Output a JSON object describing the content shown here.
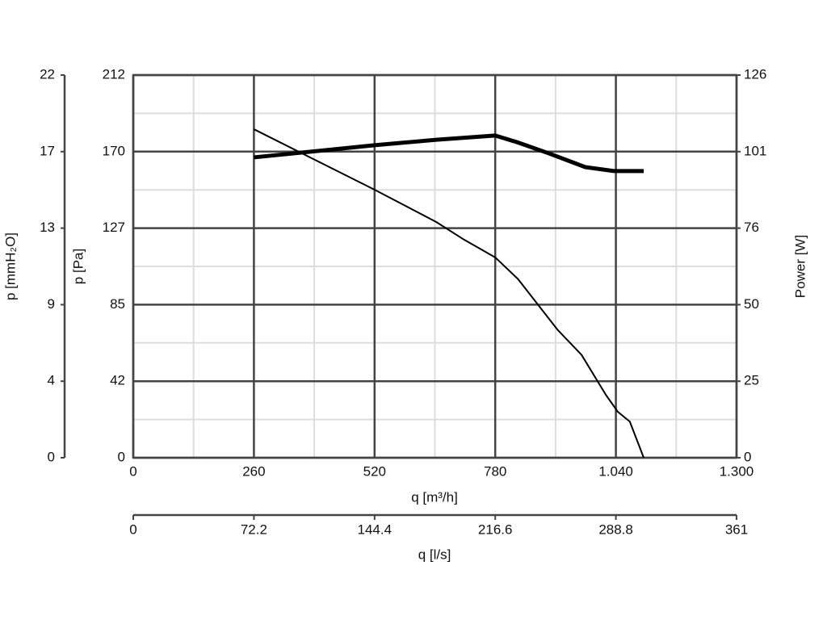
{
  "chart_data": {
    "type": "line",
    "xlabel": "q [m³/h]",
    "xlim": [
      0,
      1300
    ],
    "xticks": [
      0,
      260,
      520,
      780,
      {
        "value": 1040,
        "label": "1.040"
      },
      {
        "value": 1300,
        "label": "1.300"
      }
    ],
    "x2label": "q [l/s]",
    "x2lim": [
      0,
      361
    ],
    "x2ticks": [
      0,
      72.2,
      144.4,
      216.6,
      288.8,
      361
    ],
    "ylabel": "p [Pa]",
    "ylim": [
      0,
      212
    ],
    "yticks": [
      0,
      {
        "value": 42.4,
        "label": "42"
      },
      {
        "value": 84.8,
        "label": "85"
      },
      {
        "value": 127.2,
        "label": "127"
      },
      {
        "value": 169.6,
        "label": "170"
      },
      212
    ],
    "y_outer_label": "p [mmH₂O]",
    "y_outer_lim": [
      0,
      21.6
    ],
    "y_outer_ticks": [
      0,
      {
        "value": 4.32,
        "label": "4"
      },
      {
        "value": 8.64,
        "label": "9"
      },
      {
        "value": 12.96,
        "label": "13"
      },
      {
        "value": 17.28,
        "label": "17"
      },
      {
        "value": 21.6,
        "label": "22"
      }
    ],
    "y2label": "Power [W]",
    "y2lim": [
      0,
      126
    ],
    "y2ticks": [
      0,
      {
        "value": 25.2,
        "label": "25"
      },
      {
        "value": 50.4,
        "label": "50"
      },
      {
        "value": 75.6,
        "label": "76"
      },
      {
        "value": 100.8,
        "label": "101"
      },
      126
    ],
    "grid": true,
    "minor_grid": true,
    "series": [
      {
        "color": "#000000",
        "width": 2,
        "x": [
          260,
          520,
          653,
          713,
          780,
          829,
          914,
          966,
          1018,
          1044,
          1070,
          1100
        ],
        "values": [
          182,
          148.5,
          130.6,
          120.8,
          111,
          99,
          71,
          57,
          35,
          25.5,
          20,
          0
        ]
      },
      {
        "color": "#000000",
        "width": 5,
        "axis": "y2",
        "x": [
          260,
          520,
          653,
          780,
          827,
          896,
          974,
          1036,
          1100
        ],
        "values": [
          98.9,
          102.9,
          104.7,
          106.1,
          103.9,
          100.2,
          95.7,
          94.4,
          94.4
        ]
      }
    ]
  }
}
